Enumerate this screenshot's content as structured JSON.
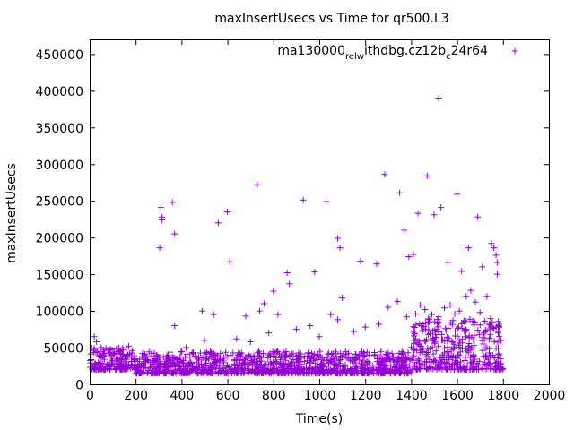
{
  "colors": {
    "series": "#9400d3",
    "axis": "#000000",
    "background": "#ffffff"
  },
  "chart_data": {
    "type": "scatter",
    "title": "maxInsertUsecs vs Time for qr500.L3",
    "xlabel": "Time(s)",
    "ylabel": "maxInsertUsecs",
    "xlim": [
      0,
      2000
    ],
    "ylim": [
      0,
      470000
    ],
    "x_ticks": [
      0,
      200,
      400,
      600,
      800,
      1000,
      1200,
      1400,
      1600,
      1800,
      2000
    ],
    "x_tick_labels": [
      "0",
      "200",
      "400",
      "600",
      "800",
      "1000",
      "1200",
      "1400",
      "1600",
      "1800",
      "2000"
    ],
    "y_ticks": [
      0,
      50000,
      100000,
      150000,
      200000,
      250000,
      300000,
      350000,
      400000,
      450000
    ],
    "y_tick_labels": [
      "0",
      "50000",
      "100000",
      "150000",
      "200000",
      "250000",
      "300000",
      "350000",
      "400000",
      "450000"
    ],
    "legend_position": "top-right",
    "marker": "+",
    "series": [
      {
        "name": "ma130000_rel_withdbg.cz12b_c24r64",
        "legend_parts": [
          "ma130000",
          "rel",
          "w",
          "ithdbg.cz12b",
          "c",
          "24r64"
        ],
        "points": [
          [
            305,
            186000
          ],
          [
            310,
            241000
          ],
          [
            315,
            228000
          ],
          [
            315,
            224000
          ],
          [
            360,
            248000
          ],
          [
            370,
            205000
          ],
          [
            370,
            80000
          ],
          [
            490,
            100000
          ],
          [
            560,
            220000
          ],
          [
            600,
            235000
          ],
          [
            610,
            167000
          ],
          [
            730,
            272000
          ],
          [
            760,
            110000
          ],
          [
            800,
            127000
          ],
          [
            860,
            152000
          ],
          [
            870,
            137000
          ],
          [
            930,
            251000
          ],
          [
            980,
            153000
          ],
          [
            1030,
            249000
          ],
          [
            1080,
            199000
          ],
          [
            1090,
            186000
          ],
          [
            1180,
            168000
          ],
          [
            1250,
            164000
          ],
          [
            1285,
            286000
          ],
          [
            1350,
            261000
          ],
          [
            1370,
            210000
          ],
          [
            1390,
            174000
          ],
          [
            1410,
            177000
          ],
          [
            1430,
            233000
          ],
          [
            1470,
            284000
          ],
          [
            1500,
            231000
          ],
          [
            1520,
            390000
          ],
          [
            1530,
            241000
          ],
          [
            1560,
            166000
          ],
          [
            1600,
            259000
          ],
          [
            1620,
            154000
          ],
          [
            1650,
            186000
          ],
          [
            1690,
            228000
          ],
          [
            1710,
            160000
          ],
          [
            1730,
            120000
          ],
          [
            1750,
            192000
          ],
          [
            1760,
            186000
          ],
          [
            1770,
            176000
          ],
          [
            1775,
            166000
          ],
          [
            1775,
            150000
          ],
          [
            20,
            65000
          ],
          [
            30,
            58000
          ],
          [
            50,
            50000
          ],
          [
            90,
            48000
          ],
          [
            170,
            52000
          ],
          [
            230,
            42000
          ],
          [
            420,
            50000
          ],
          [
            500,
            60000
          ],
          [
            540,
            95000
          ],
          [
            640,
            62000
          ],
          [
            680,
            93000
          ],
          [
            700,
            58000
          ],
          [
            740,
            100000
          ],
          [
            780,
            70000
          ],
          [
            820,
            95000
          ],
          [
            900,
            75000
          ],
          [
            960,
            80000
          ],
          [
            1000,
            65000
          ],
          [
            1050,
            95000
          ],
          [
            1080,
            88000
          ],
          [
            1100,
            118000
          ],
          [
            1150,
            72000
          ],
          [
            1200,
            78000
          ],
          [
            1260,
            82000
          ],
          [
            1300,
            105000
          ],
          [
            1340,
            113000
          ],
          [
            1380,
            92000
          ],
          [
            1420,
            96000
          ],
          [
            1440,
            108000
          ],
          [
            1460,
            102000
          ],
          [
            1490,
            95000
          ],
          [
            1520,
            92000
          ],
          [
            1545,
            104000
          ],
          [
            1570,
            108000
          ],
          [
            1590,
            96000
          ],
          [
            1610,
            100000
          ],
          [
            1640,
            120000
          ],
          [
            1660,
            128000
          ],
          [
            1680,
            112000
          ],
          [
            1700,
            98000
          ],
          [
            1720,
            86000
          ],
          [
            1740,
            82000
          ],
          [
            1760,
            76000
          ],
          [
            1780,
            80000
          ]
        ]
      }
    ],
    "dense_band": [
      {
        "x_range": [
          0,
          200
        ],
        "y_range": [
          20000,
          50000
        ]
      },
      {
        "x_range": [
          200,
          1400
        ],
        "y_range": [
          15000,
          45000
        ]
      },
      {
        "x_range": [
          1400,
          1800
        ],
        "y_range": [
          20000,
          90000
        ]
      }
    ]
  }
}
